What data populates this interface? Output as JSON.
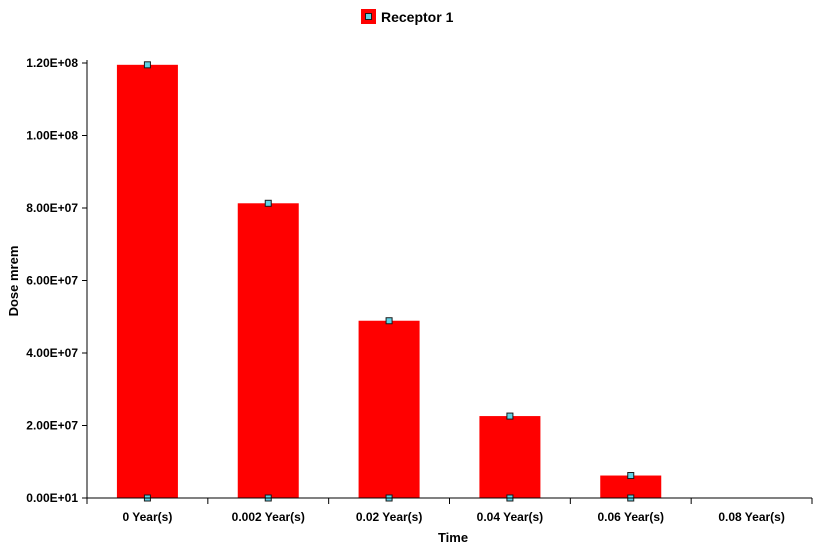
{
  "chart_data": {
    "type": "bar",
    "categories": [
      "0 Year(s)",
      "0.002 Year(s)",
      "0.02 Year(s)",
      "0.04 Year(s)",
      "0.06 Year(s)",
      "0.08 Year(s)"
    ],
    "series": [
      {
        "name": "Receptor 1",
        "values": [
          119500000,
          81300000,
          48900000,
          22600000,
          6200000,
          0
        ]
      }
    ],
    "xlabel": "Time",
    "ylabel": "Dose mrem",
    "ylim": [
      0,
      120000000
    ],
    "yticks": [
      "0.00E+01",
      "2.00E+07",
      "4.00E+07",
      "6.00E+07",
      "8.00E+07",
      "1.00E+08",
      "1.20E+08"
    ],
    "legend_position": "top-center",
    "grid": false,
    "colors": {
      "bar": "#ff0000",
      "marker_fill": "#5fd3e6",
      "marker_stroke": "#1a1a1a",
      "axis": "#000000"
    }
  }
}
